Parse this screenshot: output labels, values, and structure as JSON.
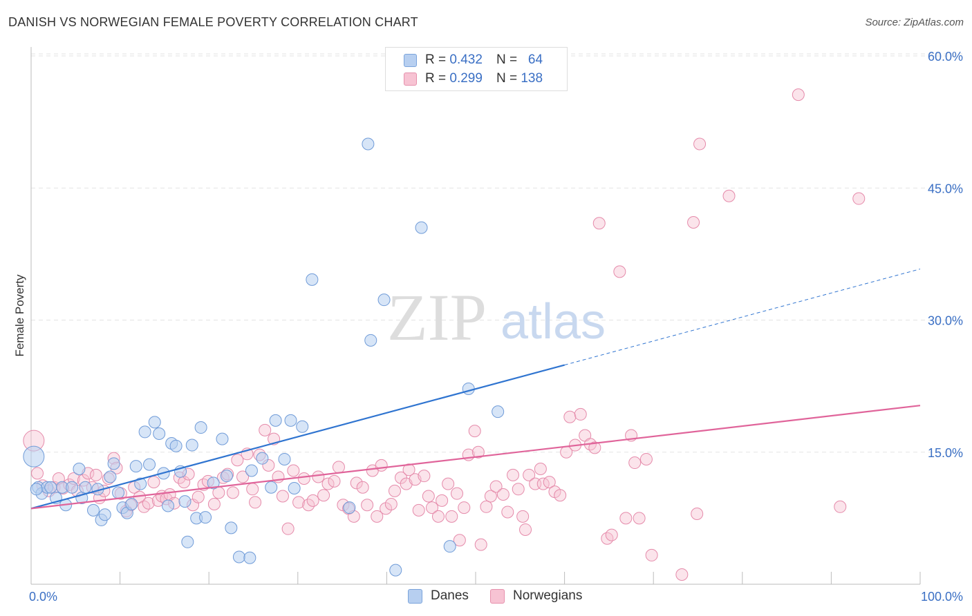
{
  "title": "DANISH VS NORWEGIAN FEMALE POVERTY CORRELATION CHART",
  "source": "Source: ZipAtlas.com",
  "watermark": {
    "zip": "ZIP",
    "atlas": "atlas"
  },
  "legend_top": [
    {
      "r_label": "R =",
      "r_value": "0.432",
      "n_label": "N =",
      "n_value": "64",
      "color": "#b7cff0"
    },
    {
      "r_label": "R =",
      "r_value": "0.299",
      "n_label": "N =",
      "n_value": "138",
      "color": "#f7c3d3"
    }
  ],
  "legend_bottom": [
    {
      "label": "Danes",
      "color": "#b7cff0"
    },
    {
      "label": "Norwegians",
      "color": "#f7c3d3"
    }
  ],
  "colors": {
    "danes": "#2f74d0",
    "norwegians": "#e0649a",
    "axis_label": "#3a6fc4"
  },
  "chart_data": {
    "type": "scatter",
    "title": "DANISH VS NORWEGIAN FEMALE POVERTY CORRELATION CHART",
    "xlabel": "",
    "ylabel": "Female Poverty",
    "xlim": [
      0,
      100
    ],
    "ylim": [
      0,
      61
    ],
    "x_tick_labels": [
      "0.0%",
      "100.0%"
    ],
    "y_ticks": [
      15,
      30,
      45,
      60
    ],
    "y_tick_labels": [
      "15.0%",
      "30.0%",
      "45.0%",
      "60.0%"
    ],
    "grid": true,
    "series": [
      {
        "name": "Danes",
        "points": [
          [
            0.3,
            14.5
          ],
          [
            0.8,
            11.0
          ],
          [
            1.2,
            10.3
          ],
          [
            1.8,
            11.0
          ],
          [
            2.2,
            11.0
          ],
          [
            2.8,
            9.8
          ],
          [
            3.5,
            11.0
          ],
          [
            3.9,
            9.0
          ],
          [
            4.6,
            11.0
          ],
          [
            5.4,
            13.1
          ],
          [
            5.7,
            9.8
          ],
          [
            6.1,
            11.0
          ],
          [
            7.0,
            8.4
          ],
          [
            7.5,
            10.8
          ],
          [
            7.9,
            7.3
          ],
          [
            8.3,
            7.9
          ],
          [
            8.9,
            12.2
          ],
          [
            9.3,
            13.7
          ],
          [
            9.8,
            10.4
          ],
          [
            10.3,
            8.7
          ],
          [
            10.8,
            8.1
          ],
          [
            11.3,
            9.1
          ],
          [
            11.8,
            13.4
          ],
          [
            12.3,
            11.4
          ],
          [
            12.8,
            17.3
          ],
          [
            13.3,
            13.6
          ],
          [
            13.9,
            18.4
          ],
          [
            14.4,
            17.1
          ],
          [
            14.9,
            12.6
          ],
          [
            15.4,
            8.9
          ],
          [
            15.8,
            16.0
          ],
          [
            16.3,
            15.7
          ],
          [
            16.8,
            12.8
          ],
          [
            17.3,
            9.4
          ],
          [
            17.6,
            4.8
          ],
          [
            18.1,
            15.8
          ],
          [
            18.6,
            7.5
          ],
          [
            19.1,
            17.8
          ],
          [
            19.6,
            7.6
          ],
          [
            20.5,
            11.5
          ],
          [
            21.5,
            16.5
          ],
          [
            22.0,
            12.3
          ],
          [
            22.5,
            6.4
          ],
          [
            23.4,
            3.1
          ],
          [
            24.6,
            3.0
          ],
          [
            24.8,
            12.9
          ],
          [
            26.0,
            14.3
          ],
          [
            27.0,
            11.0
          ],
          [
            27.5,
            18.6
          ],
          [
            28.5,
            14.2
          ],
          [
            29.2,
            18.6
          ],
          [
            29.6,
            10.9
          ],
          [
            30.5,
            17.9
          ],
          [
            31.6,
            34.6
          ],
          [
            35.8,
            8.7
          ],
          [
            37.9,
            50.0
          ],
          [
            38.2,
            27.7
          ],
          [
            39.7,
            32.3
          ],
          [
            41.0,
            1.6
          ],
          [
            43.9,
            40.5
          ],
          [
            47.1,
            4.3
          ],
          [
            49.2,
            22.2
          ],
          [
            52.5,
            19.6
          ],
          [
            0.6,
            10.8
          ]
        ]
      },
      {
        "name": "Norwegians",
        "points": [
          [
            0.3,
            16.3
          ],
          [
            0.7,
            12.6
          ],
          [
            1.3,
            11.2
          ],
          [
            2.0,
            10.6
          ],
          [
            2.6,
            11.0
          ],
          [
            3.1,
            12.0
          ],
          [
            3.6,
            10.9
          ],
          [
            4.3,
            11.3
          ],
          [
            4.8,
            12.0
          ],
          [
            5.2,
            10.6
          ],
          [
            5.9,
            11.8
          ],
          [
            6.4,
            12.6
          ],
          [
            6.9,
            11.0
          ],
          [
            7.3,
            12.4
          ],
          [
            7.7,
            9.8
          ],
          [
            8.2,
            10.6
          ],
          [
            8.7,
            12.0
          ],
          [
            9.3,
            14.3
          ],
          [
            9.6,
            13.2
          ],
          [
            10.1,
            10.3
          ],
          [
            10.7,
            8.3
          ],
          [
            11.2,
            9.0
          ],
          [
            11.6,
            11.0
          ],
          [
            12.2,
            9.9
          ],
          [
            12.7,
            8.8
          ],
          [
            13.2,
            9.2
          ],
          [
            13.8,
            11.6
          ],
          [
            14.3,
            9.5
          ],
          [
            14.7,
            10.0
          ],
          [
            15.2,
            9.7
          ],
          [
            15.6,
            10.2
          ],
          [
            16.1,
            9.2
          ],
          [
            16.7,
            12.1
          ],
          [
            17.2,
            11.6
          ],
          [
            17.7,
            12.5
          ],
          [
            18.2,
            9.0
          ],
          [
            18.8,
            9.9
          ],
          [
            19.4,
            11.3
          ],
          [
            19.9,
            11.7
          ],
          [
            20.6,
            9.1
          ],
          [
            21.1,
            10.4
          ],
          [
            21.6,
            12.1
          ],
          [
            22.1,
            12.5
          ],
          [
            22.7,
            10.4
          ],
          [
            23.2,
            14.1
          ],
          [
            23.8,
            12.2
          ],
          [
            24.3,
            14.8
          ],
          [
            24.9,
            10.8
          ],
          [
            25.2,
            9.3
          ],
          [
            25.7,
            14.7
          ],
          [
            26.3,
            17.5
          ],
          [
            26.7,
            13.5
          ],
          [
            27.3,
            16.5
          ],
          [
            27.8,
            12.2
          ],
          [
            28.3,
            10.0
          ],
          [
            28.9,
            6.3
          ],
          [
            29.5,
            12.9
          ],
          [
            30.1,
            9.3
          ],
          [
            30.7,
            12.0
          ],
          [
            31.2,
            9.0
          ],
          [
            31.7,
            9.5
          ],
          [
            32.3,
            12.2
          ],
          [
            32.9,
            10.1
          ],
          [
            33.4,
            11.4
          ],
          [
            34.1,
            11.7
          ],
          [
            34.6,
            13.3
          ],
          [
            35.1,
            9.0
          ],
          [
            35.7,
            8.6
          ],
          [
            36.3,
            7.7
          ],
          [
            36.6,
            11.5
          ],
          [
            37.3,
            11.0
          ],
          [
            37.8,
            9.0
          ],
          [
            38.4,
            12.9
          ],
          [
            38.9,
            7.7
          ],
          [
            39.4,
            13.5
          ],
          [
            39.9,
            8.6
          ],
          [
            40.5,
            9.1
          ],
          [
            40.9,
            10.6
          ],
          [
            41.6,
            12.1
          ],
          [
            42.2,
            11.4
          ],
          [
            42.5,
            13.0
          ],
          [
            43.2,
            11.9
          ],
          [
            43.6,
            8.4
          ],
          [
            44.2,
            12.3
          ],
          [
            44.7,
            10.0
          ],
          [
            45.1,
            8.7
          ],
          [
            45.8,
            7.7
          ],
          [
            46.2,
            9.5
          ],
          [
            46.9,
            11.4
          ],
          [
            47.3,
            7.7
          ],
          [
            47.9,
            10.3
          ],
          [
            48.2,
            5.0
          ],
          [
            48.7,
            8.7
          ],
          [
            49.2,
            14.7
          ],
          [
            49.9,
            17.4
          ],
          [
            50.3,
            15.0
          ],
          [
            50.6,
            4.5
          ],
          [
            51.2,
            8.8
          ],
          [
            51.7,
            10.0
          ],
          [
            52.3,
            11.1
          ],
          [
            53.1,
            10.2
          ],
          [
            53.6,
            8.2
          ],
          [
            54.2,
            12.4
          ],
          [
            54.8,
            10.8
          ],
          [
            55.3,
            7.7
          ],
          [
            55.6,
            6.2
          ],
          [
            56.0,
            12.4
          ],
          [
            56.7,
            11.4
          ],
          [
            57.3,
            13.1
          ],
          [
            57.6,
            11.4
          ],
          [
            58.3,
            11.6
          ],
          [
            58.9,
            10.5
          ],
          [
            59.5,
            10.1
          ],
          [
            60.2,
            15.0
          ],
          [
            60.6,
            19.0
          ],
          [
            61.2,
            15.8
          ],
          [
            61.8,
            19.3
          ],
          [
            62.3,
            16.9
          ],
          [
            62.9,
            15.9
          ],
          [
            63.4,
            15.5
          ],
          [
            63.9,
            41.0
          ],
          [
            64.8,
            5.2
          ],
          [
            65.3,
            5.6
          ],
          [
            66.2,
            35.5
          ],
          [
            66.9,
            7.5
          ],
          [
            67.5,
            16.9
          ],
          [
            67.9,
            13.8
          ],
          [
            68.4,
            7.5
          ],
          [
            69.2,
            14.2
          ],
          [
            69.8,
            3.3
          ],
          [
            73.2,
            1.1
          ],
          [
            74.9,
            8.0
          ],
          [
            74.5,
            41.1
          ],
          [
            75.2,
            50.0
          ],
          [
            78.5,
            44.1
          ],
          [
            86.3,
            55.6
          ],
          [
            91.0,
            8.8
          ],
          [
            93.1,
            43.8
          ]
        ]
      }
    ],
    "trendlines": [
      {
        "series": "Danes",
        "x1": 0,
        "y1": 8.6,
        "x2": 60,
        "y2": 24.9,
        "dashed_to_x": 100,
        "dashed_to_y": 35.8
      },
      {
        "series": "Norwegians",
        "x1": 0,
        "y1": 8.6,
        "x2": 100,
        "y2": 20.3
      }
    ]
  }
}
